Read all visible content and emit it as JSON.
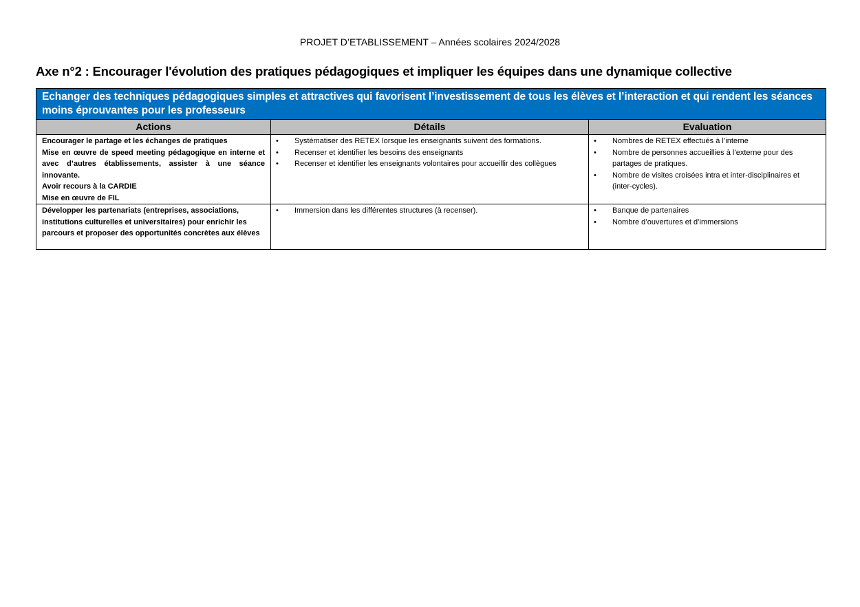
{
  "document_header": "PROJET D’ETABLISSEMENT – Années scolaires 2024/2028",
  "axe_title": "Axe n°2 : Encourager l'évolution des pratiques pédagogiques et impliquer les équipes dans une dynamique collective",
  "table": {
    "objective": "Echanger des techniques pédagogiques simples et attractives qui favorisent l’investissement de tous les élèves et l’interaction et qui rendent les séances moins éprouvantes pour les professeurs",
    "header_color": "#0070c0",
    "columns": [
      "Actions",
      "Détails",
      "Evaluation"
    ],
    "rows": [
      {
        "actions": [
          "Encourager le partage et les échanges de pratiques",
          "Mise en œuvre de speed meeting pédagogique en interne et avec d’autres établissements, assister à une séance innovante.",
          "Avoir recours à la CARDIE",
          "Mise en œuvre de FIL"
        ],
        "details": [
          "Systématiser des RETEX lorsque les enseignants suivent des formations.",
          "Recenser et identifier les besoins des enseignants",
          "Recenser et identifier les enseignants volontaires pour accueillir des collègues"
        ],
        "evaluation": [
          "Nombres de RETEX effectués à l’interne",
          "Nombre de personnes accueillies à l’externe pour des partages de pratiques.",
          "Nombre de visites croisées intra et inter-disciplinaires et (inter-cycles)."
        ]
      },
      {
        "actions": [
          "Développer les partenariats (entreprises, associations, institutions culturelles et universitaires) pour enrichir les parcours et proposer des opportunités concrètes aux élèves"
        ],
        "details": [
          "Immersion dans les différentes structures (à recenser)."
        ],
        "evaluation": [
          "Banque de partenaires",
          "Nombre d’ouvertures et d’immersions"
        ]
      }
    ]
  }
}
